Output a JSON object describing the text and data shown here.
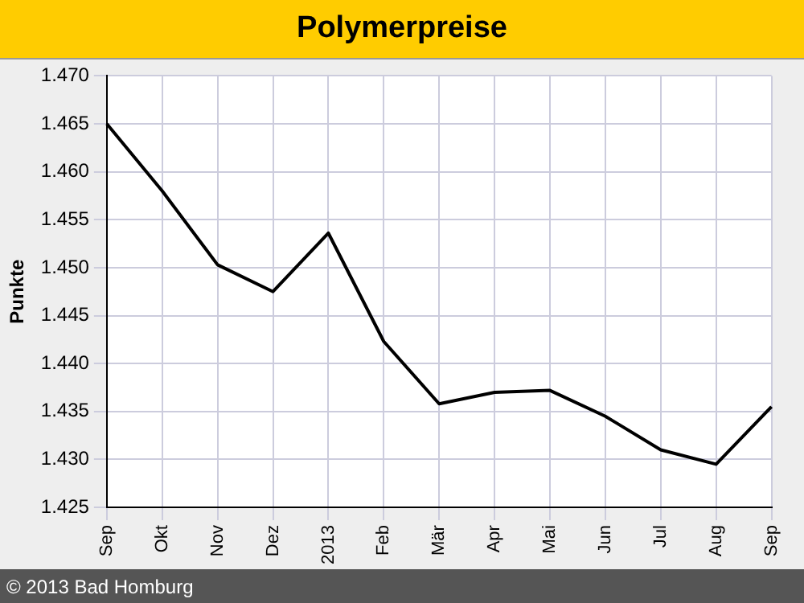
{
  "chart_data": {
    "type": "line",
    "title": "Polymerpreise",
    "ylabel": "Punkte",
    "categories": [
      "Sep",
      "Okt",
      "Nov",
      "Dez",
      "2013",
      "Feb",
      "Mär",
      "Apr",
      "Mai",
      "Jun",
      "Jul",
      "Aug",
      "Sep"
    ],
    "series": [
      {
        "color": "#000000",
        "values": [
          1.465,
          1.458,
          1.4503,
          1.4475,
          1.4536,
          1.4423,
          1.4358,
          1.437,
          1.4372,
          1.4345,
          1.431,
          1.4295,
          1.4355
        ]
      }
    ],
    "ylim": [
      1.425,
      1.47
    ],
    "yticks": [
      1.425,
      {
        "value": 1.43,
        "label": "1.430"
      },
      1.435,
      {
        "value": 1.44,
        "label": "1.440"
      },
      1.445,
      {
        "value": 1.45,
        "label": "1.450"
      },
      1.455,
      {
        "value": 1.46,
        "label": "1.460"
      },
      1.465,
      {
        "value": 1.47,
        "label": "1.470"
      }
    ],
    "grid": true,
    "marker": "none",
    "line_style": "solid",
    "annotations": [
      "© 2013 Bad Homburg"
    ]
  }
}
